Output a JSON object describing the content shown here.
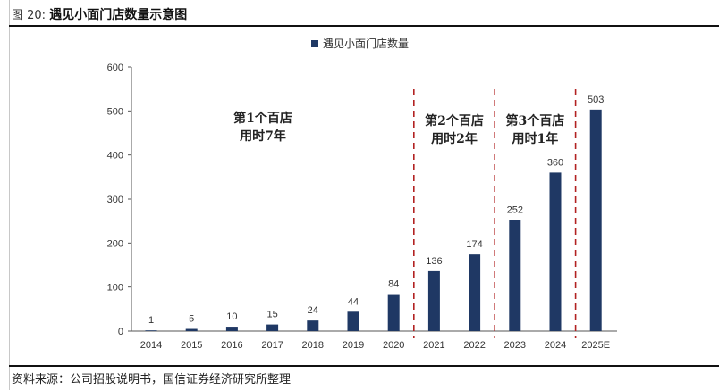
{
  "figure": {
    "number_label": "图 20:",
    "title": "遇见小面门店数量示意图",
    "source": "资料来源：公司招股说明书，国信证券经济研究所整理"
  },
  "chart_data": {
    "type": "bar",
    "title": "遇见小面门店数量示意图",
    "xlabel": "",
    "ylabel": "",
    "categories": [
      "2014",
      "2015",
      "2016",
      "2017",
      "2018",
      "2019",
      "2020",
      "2021",
      "2022",
      "2023",
      "2024",
      "2025E"
    ],
    "series": [
      {
        "name": "遇见小面门店数量",
        "color": "#1f3864",
        "values": [
          1,
          5,
          10,
          15,
          24,
          44,
          84,
          136,
          174,
          252,
          360,
          503
        ]
      }
    ],
    "ylim": [
      0,
      600
    ],
    "yticks": [
      0,
      100,
      200,
      300,
      400,
      500,
      600
    ],
    "grid": false,
    "legend_position": "top-center",
    "separators": [
      {
        "between": [
          "2020",
          "2021"
        ],
        "style": "dashed",
        "color": "#b22222"
      },
      {
        "between": [
          "2022",
          "2023"
        ],
        "style": "dashed",
        "color": "#b22222"
      },
      {
        "between": [
          "2024",
          "2025E"
        ],
        "style": "dashed",
        "color": "#b22222"
      }
    ],
    "annotations": [
      {
        "lines": [
          "第1个百店",
          "用时7年"
        ],
        "span": [
          "2014",
          "2020"
        ]
      },
      {
        "lines": [
          "第2个百店",
          "用时2年"
        ],
        "span": [
          "2021",
          "2022"
        ]
      },
      {
        "lines": [
          "第3个百店",
          "用时1年"
        ],
        "span": [
          "2023",
          "2024"
        ]
      }
    ]
  }
}
